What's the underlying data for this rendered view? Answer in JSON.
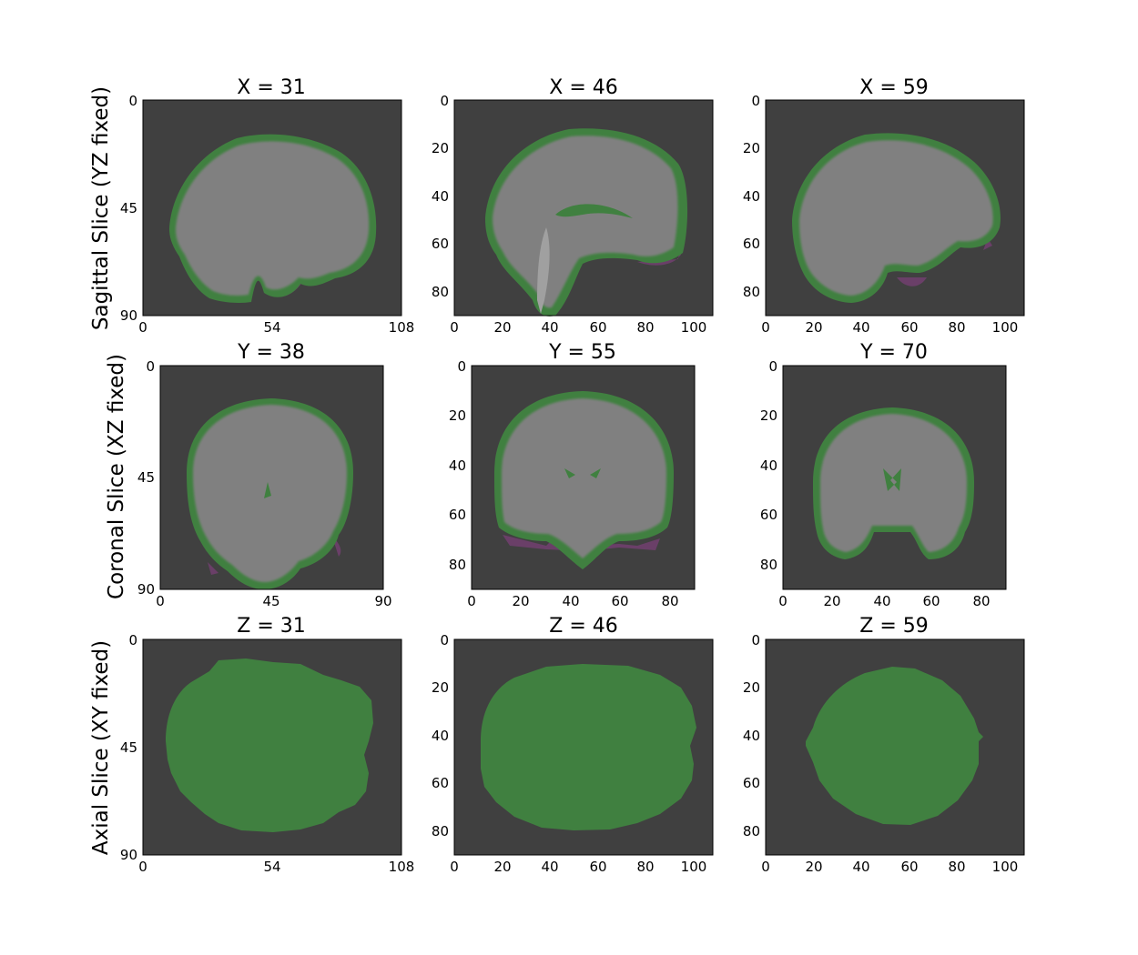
{
  "figure": {
    "colors": {
      "background": "#404040",
      "brain_gray": "#808080",
      "mask_green": "#408040",
      "overlap_magenta": "#6a3f68",
      "frame": "#000000"
    },
    "rows": [
      {
        "label": "Sagittal Slice (YZ fixed)",
        "panels": [
          {
            "title": "X = 31",
            "xlim": [
              0,
              108
            ],
            "ylim": [
              0,
              90
            ],
            "xticks": [
              "0",
              "54",
              "108"
            ],
            "yticks": [
              "0",
              "45",
              "90"
            ]
          },
          {
            "title": "X = 46",
            "xlim": [
              0,
              108
            ],
            "ylim": [
              0,
              90
            ],
            "xticks": [
              "0",
              "20",
              "40",
              "60",
              "80",
              "100"
            ],
            "yticks": [
              "0",
              "20",
              "40",
              "60",
              "80"
            ]
          },
          {
            "title": "X = 59",
            "xlim": [
              0,
              108
            ],
            "ylim": [
              0,
              90
            ],
            "xticks": [
              "0",
              "20",
              "40",
              "60",
              "80",
              "100"
            ],
            "yticks": [
              "0",
              "20",
              "40",
              "60",
              "80"
            ]
          }
        ]
      },
      {
        "label": "Coronal Slice (XZ fixed)",
        "panels": [
          {
            "title": "Y = 38",
            "xlim": [
              0,
              90
            ],
            "ylim": [
              0,
              90
            ],
            "xticks": [
              "0",
              "45",
              "90"
            ],
            "yticks": [
              "0",
              "45",
              "90"
            ]
          },
          {
            "title": "Y = 55",
            "xlim": [
              0,
              90
            ],
            "ylim": [
              0,
              90
            ],
            "xticks": [
              "0",
              "20",
              "40",
              "60",
              "80"
            ],
            "yticks": [
              "0",
              "20",
              "40",
              "60",
              "80"
            ]
          },
          {
            "title": "Y = 70",
            "xlim": [
              0,
              90
            ],
            "ylim": [
              0,
              90
            ],
            "xticks": [
              "0",
              "20",
              "40",
              "60",
              "80"
            ],
            "yticks": [
              "0",
              "20",
              "40",
              "60",
              "80"
            ]
          }
        ]
      },
      {
        "label": "Axial Slice (XY fixed)",
        "panels": [
          {
            "title": "Z = 31",
            "xlim": [
              0,
              108
            ],
            "ylim": [
              0,
              90
            ],
            "xticks": [
              "0",
              "54",
              "108"
            ],
            "yticks": [
              "0",
              "45",
              "90"
            ]
          },
          {
            "title": "Z = 46",
            "xlim": [
              0,
              108
            ],
            "ylim": [
              0,
              90
            ],
            "xticks": [
              "0",
              "20",
              "40",
              "60",
              "80",
              "100"
            ],
            "yticks": [
              "0",
              "20",
              "40",
              "60",
              "80"
            ]
          },
          {
            "title": "Z = 59",
            "xlim": [
              0,
              108
            ],
            "ylim": [
              0,
              90
            ],
            "xticks": [
              "0",
              "20",
              "40",
              "60",
              "80",
              "100"
            ],
            "yticks": [
              "0",
              "20",
              "40",
              "60",
              "80"
            ]
          }
        ]
      }
    ]
  }
}
